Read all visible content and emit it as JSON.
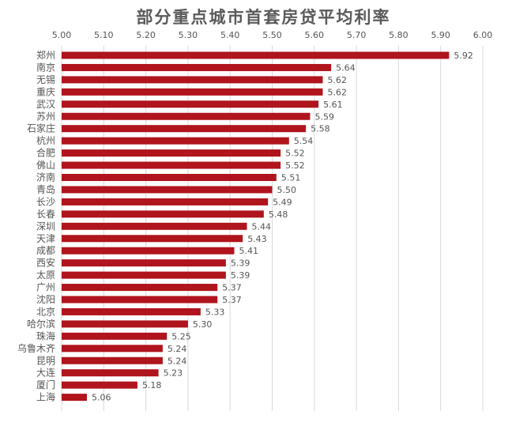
{
  "chart_data": {
    "type": "bar",
    "orientation": "horizontal",
    "title": "部分重点城市首套房贷平均利率",
    "categories": [
      "郑州",
      "南京",
      "无锡",
      "重庆",
      "武汉",
      "苏州",
      "石家庄",
      "杭州",
      "合肥",
      "佛山",
      "济南",
      "青岛",
      "长沙",
      "长春",
      "深圳",
      "天津",
      "成都",
      "西安",
      "太原",
      "广州",
      "沈阳",
      "北京",
      "哈尔滨",
      "珠海",
      "乌鲁木齐",
      "昆明",
      "大连",
      "厦门",
      "上海"
    ],
    "values": [
      5.92,
      5.64,
      5.62,
      5.62,
      5.61,
      5.59,
      5.58,
      5.54,
      5.52,
      5.52,
      5.51,
      5.5,
      5.49,
      5.48,
      5.44,
      5.43,
      5.41,
      5.39,
      5.39,
      5.37,
      5.37,
      5.33,
      5.3,
      5.25,
      5.24,
      5.24,
      5.23,
      5.18,
      5.06
    ],
    "value_labels": [
      "5.92",
      "5.64",
      "5.62",
      "5.62",
      "5.61",
      "5.59",
      "5.58",
      "5.54",
      "5.52",
      "5.52",
      "5.51",
      "5.50",
      "5.49",
      "5.48",
      "5.44",
      "5.43",
      "5.41",
      "5.39",
      "5.39",
      "5.37",
      "5.37",
      "5.33",
      "5.30",
      "5.25",
      "5.24",
      "5.24",
      "5.23",
      "5.18",
      "5.06"
    ],
    "xlim": [
      5.0,
      6.0
    ],
    "x_ticks": [
      "5.00",
      "5.10",
      "5.20",
      "5.30",
      "5.40",
      "5.50",
      "5.60",
      "5.70",
      "5.80",
      "5.90",
      "6.00"
    ],
    "axis_position": "top",
    "grid": true,
    "legend": "none",
    "colors": {
      "bar": "#b0141c",
      "grid": "#d9d9d9",
      "text": "#555555",
      "title": "#5a5a5a"
    }
  }
}
